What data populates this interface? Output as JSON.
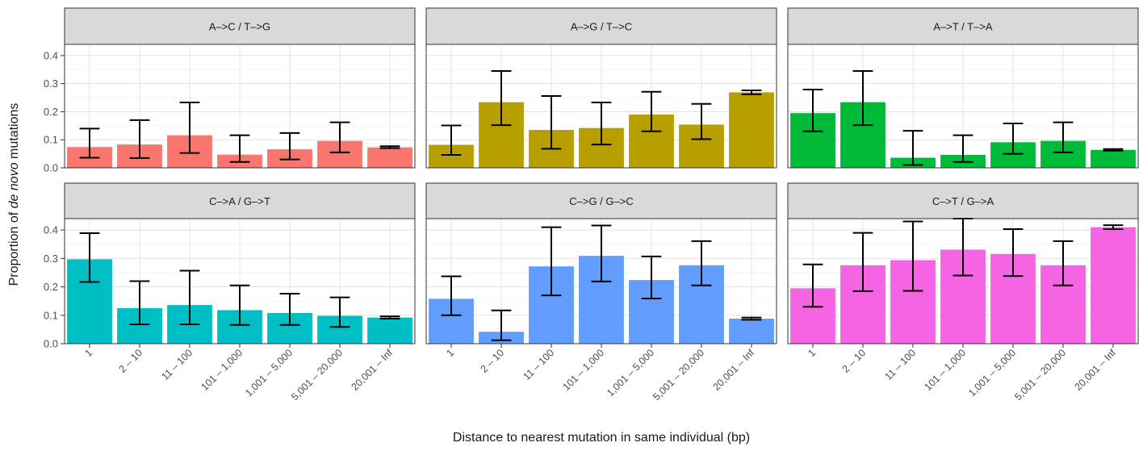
{
  "chart_data": {
    "type": "bar",
    "ylabel_prefix": "Proportion of ",
    "ylabel_italic": "de novo",
    "ylabel_suffix": " mutations",
    "xlabel": "Distance to nearest mutation in same individual (bp)",
    "categories": [
      "1",
      "2 – 10",
      "11 – 100",
      "101 – 1,000",
      "1,001 – 5,000",
      "5,001 – 20,000",
      "20,001 – Inf"
    ],
    "ylim": [
      0,
      0.44
    ],
    "yticks": [
      {
        "v": 0.0,
        "label": "0.0"
      },
      {
        "v": 0.1,
        "label": "0.1"
      },
      {
        "v": 0.2,
        "label": "0.2"
      },
      {
        "v": 0.3,
        "label": "0.3"
      },
      {
        "v": 0.4,
        "label": "0.4"
      }
    ],
    "grid": true,
    "panels": [
      {
        "title": "A–>C / T–>G",
        "color": "#F8766D",
        "row": 0,
        "col": 0,
        "values": [
          0.074,
          0.083,
          0.116,
          0.047,
          0.066,
          0.096,
          0.073
        ],
        "lower": [
          0.036,
          0.035,
          0.053,
          0.021,
          0.03,
          0.055,
          0.07
        ],
        "upper": [
          0.14,
          0.17,
          0.233,
          0.116,
          0.124,
          0.162,
          0.077
        ]
      },
      {
        "title": "A–>G / T–>C",
        "color": "#B79F00",
        "row": 0,
        "col": 1,
        "values": [
          0.082,
          0.234,
          0.135,
          0.142,
          0.19,
          0.154,
          0.269
        ],
        "lower": [
          0.046,
          0.152,
          0.068,
          0.083,
          0.13,
          0.102,
          0.262
        ],
        "upper": [
          0.151,
          0.345,
          0.256,
          0.233,
          0.271,
          0.228,
          0.276
        ]
      },
      {
        "title": "A–>T / T–>A",
        "color": "#00BA38",
        "row": 0,
        "col": 2,
        "values": [
          0.195,
          0.234,
          0.036,
          0.046,
          0.091,
          0.096,
          0.064
        ],
        "lower": [
          0.13,
          0.152,
          0.01,
          0.021,
          0.05,
          0.055,
          0.061
        ],
        "upper": [
          0.279,
          0.345,
          0.132,
          0.116,
          0.158,
          0.162,
          0.067
        ]
      },
      {
        "title": "C–>A / G–>T",
        "color": "#00BFC4",
        "row": 1,
        "col": 0,
        "values": [
          0.297,
          0.125,
          0.136,
          0.118,
          0.108,
          0.098,
          0.092
        ],
        "lower": [
          0.217,
          0.068,
          0.068,
          0.066,
          0.066,
          0.059,
          0.088
        ],
        "upper": [
          0.389,
          0.22,
          0.257,
          0.205,
          0.176,
          0.163,
          0.096
        ]
      },
      {
        "title": "C–>G / G–>C",
        "color": "#619CFF",
        "row": 1,
        "col": 1,
        "values": [
          0.158,
          0.042,
          0.272,
          0.309,
          0.224,
          0.276,
          0.088
        ],
        "lower": [
          0.1,
          0.012,
          0.17,
          0.219,
          0.159,
          0.205,
          0.084
        ],
        "upper": [
          0.237,
          0.117,
          0.41,
          0.416,
          0.307,
          0.361,
          0.092
        ]
      },
      {
        "title": "C–>T / G–>A",
        "color": "#F564E3",
        "row": 1,
        "col": 2,
        "values": [
          0.195,
          0.276,
          0.294,
          0.331,
          0.316,
          0.276,
          0.41
        ],
        "lower": [
          0.13,
          0.185,
          0.186,
          0.24,
          0.238,
          0.205,
          0.403
        ],
        "upper": [
          0.279,
          0.39,
          0.43,
          0.44,
          0.403,
          0.361,
          0.417
        ]
      }
    ]
  }
}
